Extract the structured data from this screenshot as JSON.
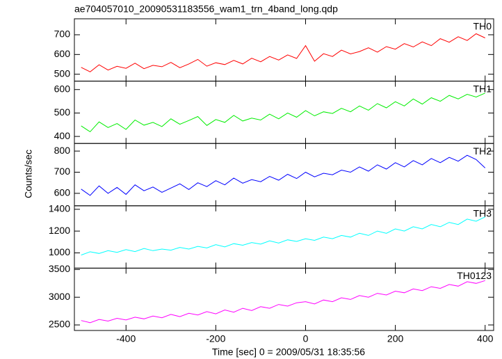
{
  "chart_data": {
    "type": "line",
    "title": "ae704057010_20090531183556_wam1_trn_4band_long.qdp",
    "ylabel": "Counts/sec",
    "xlabel": "Time [sec] 0 = 2009/05/31 18:35:56",
    "xlim": [
      -515,
      419
    ],
    "xticks": [
      -400,
      -200,
      0,
      200,
      400
    ],
    "x": [
      -500,
      -480,
      -460,
      -440,
      -420,
      -400,
      -380,
      -360,
      -340,
      -320,
      -300,
      -280,
      -260,
      -240,
      -220,
      -200,
      -180,
      -160,
      -140,
      -120,
      -100,
      -80,
      -60,
      -40,
      -20,
      0,
      20,
      40,
      60,
      80,
      100,
      120,
      140,
      160,
      180,
      200,
      220,
      240,
      260,
      280,
      300,
      320,
      340,
      360,
      380,
      400
    ],
    "panels": [
      {
        "name": "TH0",
        "color": "#ff0000",
        "ylim": [
          465,
          781
        ],
        "yticks": [
          500,
          600,
          700
        ],
        "values": [
          535,
          512,
          548,
          521,
          540,
          530,
          556,
          528,
          545,
          538,
          560,
          533,
          552,
          575,
          541,
          558,
          549,
          570,
          552,
          581,
          563,
          590,
          572,
          598,
          580,
          645,
          566,
          604,
          590,
          622,
          603,
          615,
          634,
          612,
          640,
          627,
          655,
          638,
          664,
          645,
          680,
          662,
          690,
          671,
          705,
          684
        ]
      },
      {
        "name": "TH1",
        "color": "#00ee00",
        "ylim": [
          370,
          636
        ],
        "yticks": [
          400,
          500,
          600
        ],
        "values": [
          445,
          420,
          462,
          438,
          455,
          430,
          470,
          448,
          460,
          442,
          475,
          452,
          468,
          485,
          447,
          472,
          460,
          490,
          466,
          478,
          470,
          495,
          475,
          500,
          482,
          510,
          488,
          505,
          498,
          520,
          505,
          530,
          512,
          540,
          522,
          548,
          530,
          560,
          538,
          565,
          550,
          575,
          560,
          580,
          568,
          585
        ]
      },
      {
        "name": "TH2",
        "color": "#0000ff",
        "ylim": [
          541,
          836
        ],
        "yticks": [
          600,
          700,
          800
        ],
        "values": [
          620,
          590,
          635,
          600,
          628,
          595,
          640,
          612,
          630,
          605,
          625,
          645,
          618,
          650,
          632,
          660,
          640,
          672,
          648,
          665,
          655,
          680,
          662,
          690,
          670,
          700,
          678,
          695,
          688,
          710,
          700,
          725,
          705,
          735,
          715,
          745,
          725,
          755,
          735,
          765,
          745,
          770,
          752,
          780,
          760,
          720
        ]
      },
      {
        "name": "TH3",
        "color": "#00ffff",
        "ylim": [
          860,
          1432
        ],
        "yticks": [
          1000,
          1200,
          1400
        ],
        "values": [
          980,
          1010,
          995,
          1020,
          1005,
          1030,
          1012,
          1040,
          1020,
          1035,
          1025,
          1050,
          1035,
          1060,
          1045,
          1075,
          1055,
          1085,
          1070,
          1095,
          1080,
          1110,
          1090,
          1120,
          1105,
          1130,
          1115,
          1145,
          1130,
          1160,
          1145,
          1180,
          1160,
          1200,
          1180,
          1220,
          1200,
          1240,
          1220,
          1260,
          1240,
          1280,
          1260,
          1310,
          1290,
          1330
        ]
      },
      {
        "name": "TH0123",
        "color": "#ff00ff",
        "ylim": [
          2400,
          3525
        ],
        "yticks": [
          2500,
          3000,
          3500
        ],
        "values": [
          2580,
          2540,
          2600,
          2570,
          2620,
          2590,
          2640,
          2610,
          2660,
          2630,
          2690,
          2650,
          2710,
          2680,
          2740,
          2700,
          2770,
          2730,
          2800,
          2760,
          2830,
          2800,
          2870,
          2840,
          2900,
          2920,
          2880,
          2950,
          2920,
          2990,
          2960,
          3030,
          3000,
          3070,
          3040,
          3110,
          3080,
          3150,
          3120,
          3190,
          3160,
          3230,
          3200,
          3280,
          3250,
          3300
        ]
      }
    ]
  }
}
